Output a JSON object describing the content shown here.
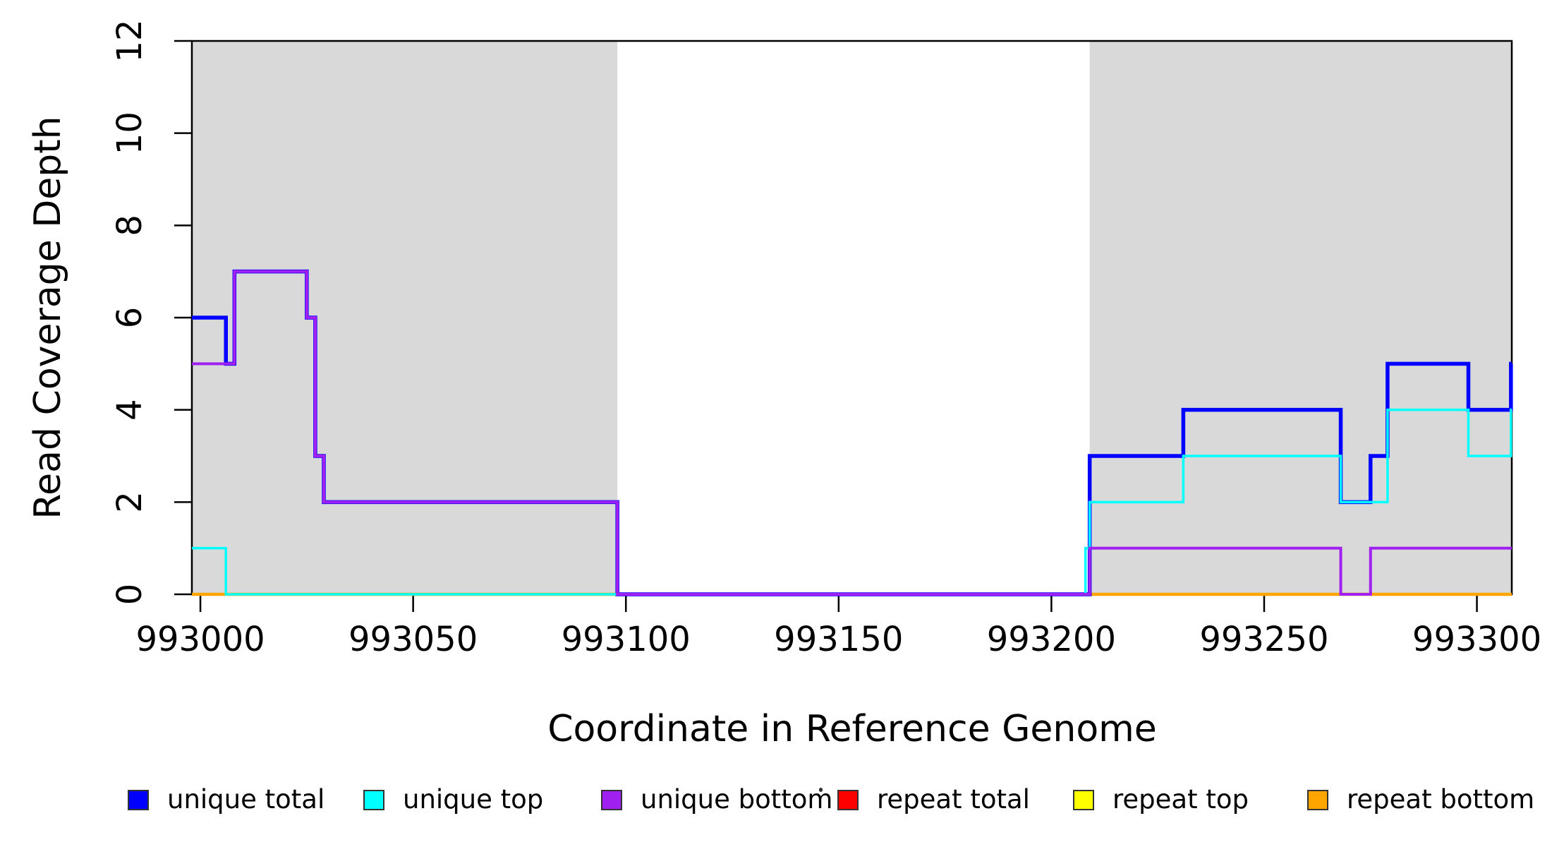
{
  "chart_data": {
    "type": "line",
    "step_style": "post",
    "title": "",
    "xlabel": "Coordinate in Reference Genome",
    "ylabel": "Read Coverage Depth",
    "xlim": [
      992998,
      993308.2
    ],
    "ylim": [
      0,
      12
    ],
    "x_ticks": [
      "993000",
      "993050",
      "993100",
      "993150",
      "993200",
      "993250",
      "993300"
    ],
    "x_tick_values": [
      993000,
      993050,
      993100,
      993150,
      993200,
      993250,
      993300
    ],
    "y_ticks": [
      "0",
      "2",
      "4",
      "6",
      "8",
      "10",
      "12"
    ],
    "y_tick_values": [
      0,
      2,
      4,
      6,
      8,
      10,
      12
    ],
    "grid": false,
    "legend_position": "bottom",
    "shaded_regions": [
      {
        "x_start": 992998,
        "x_end": 993098,
        "color": "#D9D9D9"
      },
      {
        "x_start": 993209,
        "x_end": 993308.2,
        "color": "#D9D9D9"
      }
    ],
    "draw_sequence": [
      "repeat total",
      "repeat top",
      "repeat bottom",
      "unique total",
      "unique top",
      "unique bottom"
    ],
    "series": [
      {
        "name": "unique total",
        "color": "#0000FF",
        "line_width": 5.5,
        "steps": [
          [
            992998,
            6
          ],
          [
            993006,
            5
          ],
          [
            993008,
            7
          ],
          [
            993025,
            6
          ],
          [
            993027,
            3
          ],
          [
            993029,
            2
          ],
          [
            993098,
            0
          ],
          [
            993209,
            3
          ],
          [
            993231,
            4
          ],
          [
            993268,
            2
          ],
          [
            993275,
            3
          ],
          [
            993279,
            5
          ],
          [
            993298,
            4
          ],
          [
            993308,
            5
          ]
        ]
      },
      {
        "name": "unique top",
        "color": "#00FFFF",
        "line_width": 3.5,
        "steps": [
          [
            992998,
            1
          ],
          [
            993006,
            0
          ],
          [
            993208,
            1
          ],
          [
            993209,
            2
          ],
          [
            993231,
            3
          ],
          [
            993268,
            2
          ],
          [
            993279,
            4
          ],
          [
            993298,
            3
          ],
          [
            993308,
            4
          ]
        ]
      },
      {
        "name": "unique bottom",
        "color": "#A020F0",
        "line_width": 4,
        "steps": [
          [
            992998,
            5
          ],
          [
            993008,
            7
          ],
          [
            993025,
            6
          ],
          [
            993027,
            3
          ],
          [
            993029,
            2
          ],
          [
            993098,
            0
          ],
          [
            993209,
            1
          ],
          [
            993268,
            0
          ],
          [
            993275,
            1
          ]
        ]
      },
      {
        "name": "repeat total",
        "color": "#FF0000",
        "line_width": 3.5,
        "steps": [
          [
            992998,
            0
          ]
        ]
      },
      {
        "name": "repeat top",
        "color": "#FFFF00",
        "line_width": 3.5,
        "steps": [
          [
            992998,
            0
          ]
        ]
      },
      {
        "name": "repeat bottom",
        "color": "#FFA500",
        "line_width": 4.5,
        "steps": [
          [
            992998,
            0
          ]
        ]
      }
    ]
  },
  "legend": {
    "items": [
      {
        "label": "unique total",
        "color": "#0000FF"
      },
      {
        "label": "unique top",
        "color": "#00FFFF"
      },
      {
        "label": "unique bottom",
        "color": "#A020F0"
      },
      {
        "label": "repeat total",
        "color": "#FF0000"
      },
      {
        "label": "repeat top",
        "color": "#FFFF00"
      },
      {
        "label": "repeat bottom",
        "color": "#FFA500"
      }
    ]
  },
  "colors": {
    "background": "#FFFFFF",
    "shaded_region": "#D9D9D9",
    "axis": "#000000"
  }
}
